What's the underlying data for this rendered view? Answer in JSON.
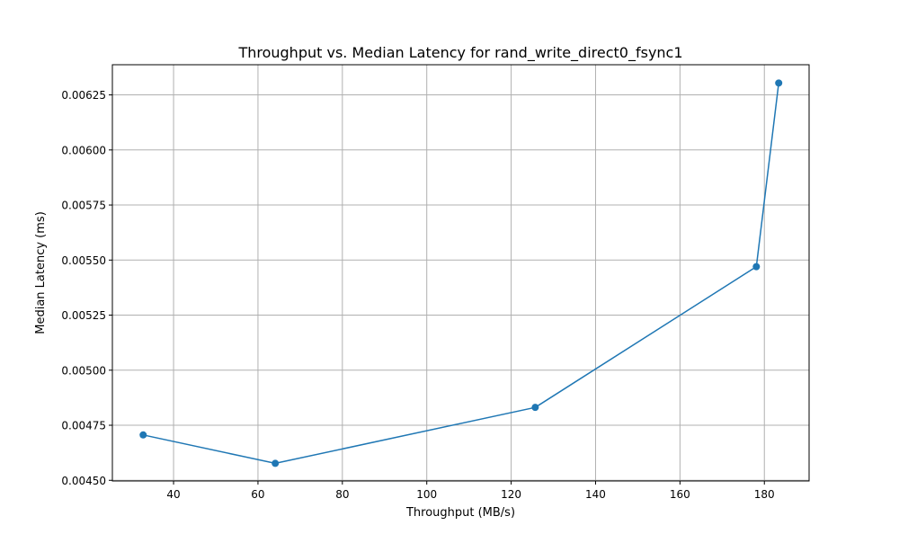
{
  "chart_data": {
    "type": "line",
    "title": "Throughput vs. Median Latency for rand_write_direct0_fsync1",
    "xlabel": "Throughput (MB/s)",
    "ylabel": "Median Latency (ms)",
    "xlim": [
      25.5,
      190.6
    ],
    "ylim": [
      0.004497,
      0.006387
    ],
    "xticks": [
      40,
      60,
      80,
      100,
      120,
      140,
      160,
      180
    ],
    "yticks": [
      0.0045,
      0.00475,
      0.005,
      0.00525,
      0.0055,
      0.00575,
      0.006,
      0.00625
    ],
    "xtick_labels": [
      "40",
      "60",
      "80",
      "100",
      "120",
      "140",
      "160",
      "180"
    ],
    "ytick_labels": [
      "0.00450",
      "0.00475",
      "0.00500",
      "0.00525",
      "0.00550",
      "0.00575",
      "0.00600",
      "0.00625"
    ],
    "grid": true,
    "series": [
      {
        "color": "#1f77b4",
        "marker": "circle",
        "points": [
          {
            "x": 32.8,
            "y": 0.004706
          },
          {
            "x": 64.1,
            "y": 0.004577
          },
          {
            "x": 125.7,
            "y": 0.004831
          },
          {
            "x": 178.1,
            "y": 0.00547
          },
          {
            "x": 183.4,
            "y": 0.006304
          }
        ]
      }
    ]
  }
}
